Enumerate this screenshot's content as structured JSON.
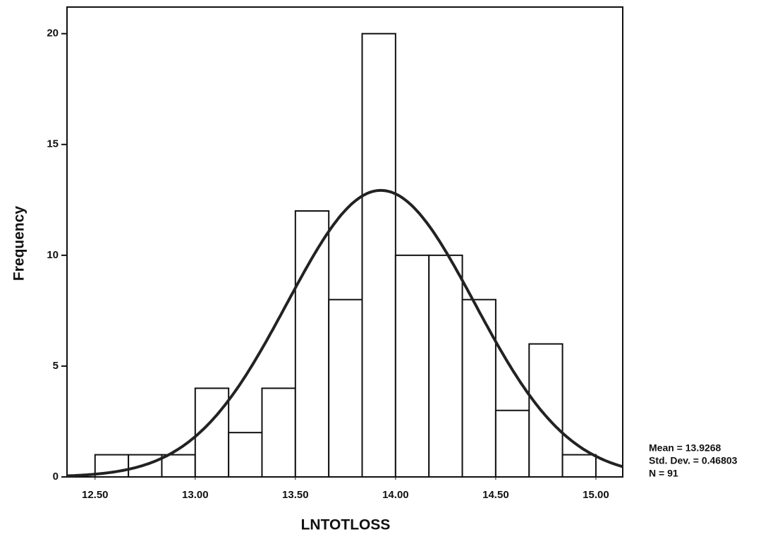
{
  "chart_data": {
    "type": "histogram",
    "x_label": "LNTOTLOSS",
    "y_label": "Frequency",
    "bins": [
      12.5,
      12.6667,
      12.8333,
      13.0,
      13.1667,
      13.3333,
      13.5,
      13.6667,
      13.8333,
      14.0,
      14.1667,
      14.3333,
      14.5,
      14.6667,
      14.8333,
      15.0
    ],
    "values": [
      1,
      1,
      1,
      4,
      2,
      4,
      12,
      8,
      20,
      10,
      10,
      8,
      3,
      6,
      1
    ],
    "color": "#ffffff",
    "xlim": [
      12.36,
      15.134
    ],
    "ylim": [
      0,
      21.2
    ],
    "xticks": [
      {
        "value": 12.5,
        "label": "12.50"
      },
      {
        "value": 13.0,
        "label": "13.00"
      },
      {
        "value": 13.5,
        "label": "13.50"
      },
      {
        "value": 14.0,
        "label": "14.00"
      },
      {
        "value": 14.5,
        "label": "14.50"
      },
      {
        "value": 15.0,
        "label": "15.00"
      }
    ],
    "yticks": [
      0,
      5,
      10,
      15,
      20
    ],
    "fit": {
      "mean": 13.9268,
      "std_dev": 0.46803,
      "n": 91,
      "labels": [
        "Mean = 13.9268",
        "Std. Dev. = 0.46803",
        "N = 91"
      ]
    }
  }
}
